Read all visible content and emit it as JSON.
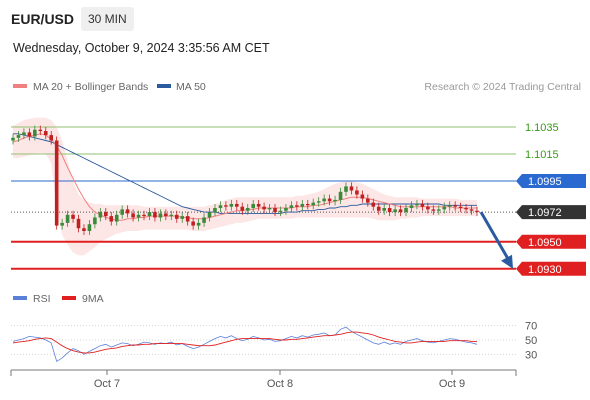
{
  "header": {
    "pair": "EUR/USD",
    "timeframe": "30 MIN",
    "datetime": "Wednesday, October 9, 2024 3:35:56 AM CET"
  },
  "legend": {
    "bollinger_label": "MA 20 + Bollinger Bands",
    "ma50_label": "MA 50",
    "credit": "Research © 2024 Trading Central",
    "rsi_label": "RSI",
    "rsi_ma_label": "9MA"
  },
  "colors": {
    "up": "#3a8a3a",
    "down": "#c02020",
    "ma20": "#f08080",
    "band_fill": "#fde3e3",
    "ma50": "#2a5aa0",
    "resistance": "#90c070",
    "pivot": "#2a6ad0",
    "support": "#e02020",
    "current": "#333333",
    "rsi": "#5a80d8",
    "rsi_ma": "#e02020",
    "arrow": "#2a5aa0"
  },
  "chart_data": [
    {
      "type": "line",
      "panel": "price",
      "x_ticks": [
        "Oct 7",
        "Oct 8",
        "Oct 9"
      ],
      "ylim": [
        1.0918,
        1.1055
      ],
      "levels": [
        {
          "value": 1.1035,
          "label": "1.1035",
          "kind": "resistance"
        },
        {
          "value": 1.1015,
          "label": "1.1015",
          "kind": "resistance"
        },
        {
          "value": 1.0995,
          "label": "1.0995",
          "kind": "pivot"
        },
        {
          "value": 1.0972,
          "label": "1.0972",
          "kind": "current"
        },
        {
          "value": 1.095,
          "label": "1.0950",
          "kind": "support"
        },
        {
          "value": 1.093,
          "label": "1.0930",
          "kind": "support"
        }
      ],
      "close": [
        1.1027,
        1.1029,
        1.1031,
        1.1028,
        1.1033,
        1.1032,
        1.1029,
        1.1025,
        1.0962,
        1.0964,
        1.097,
        1.0967,
        1.096,
        1.0958,
        1.0963,
        1.0968,
        1.0972,
        1.0969,
        1.0965,
        1.097,
        1.0974,
        1.0971,
        1.0968,
        1.097,
        1.0969,
        1.0972,
        1.0968,
        1.0971,
        1.0969,
        1.097,
        1.0967,
        1.0969,
        1.0965,
        1.0962,
        1.0964,
        1.0968,
        1.0972,
        1.0975,
        1.0977,
        1.0976,
        1.0978,
        1.0976,
        1.0973,
        1.0975,
        1.0978,
        1.0976,
        1.0974,
        1.0975,
        1.0972,
        1.0973,
        1.0975,
        1.0977,
        1.0976,
        1.0978,
        1.0977,
        1.0979,
        1.098,
        1.0982,
        1.098,
        1.0981,
        1.0987,
        1.0991,
        1.0988,
        1.0985,
        1.0982,
        1.0979,
        1.0976,
        1.0973,
        1.0975,
        1.0972,
        1.0974,
        1.0972,
        1.0975,
        1.0977,
        1.0978,
        1.0976,
        1.0974,
        1.0973,
        1.0974,
        1.0976,
        1.0977,
        1.0976,
        1.0975,
        1.0974,
        1.0973,
        1.0972
      ],
      "ma20": [
        1.1024,
        1.1025,
        1.1027,
        1.1028,
        1.1029,
        1.103,
        1.1029,
        1.1026,
        1.1021,
        1.1014,
        1.1005,
        1.0997,
        1.0989,
        1.0982,
        1.0976,
        1.0972,
        1.097,
        1.0968,
        1.0967,
        1.0966,
        1.0966,
        1.0967,
        1.0967,
        1.0968,
        1.0968,
        1.0969,
        1.0969,
        1.0969,
        1.0969,
        1.0969,
        1.0969,
        1.0968,
        1.0968,
        1.0967,
        1.0967,
        1.0967,
        1.0968,
        1.0969,
        1.097,
        1.0971,
        1.0972,
        1.0973,
        1.0973,
        1.0974,
        1.0974,
        1.0975,
        1.0975,
        1.0975,
        1.0975,
        1.0975,
        1.0975,
        1.0975,
        1.0976,
        1.0976,
        1.0976,
        1.0977,
        1.0977,
        1.0978,
        1.0979,
        1.098,
        1.0981,
        1.0982,
        1.0983,
        1.0983,
        1.0983,
        1.0982,
        1.0981,
        1.098,
        1.0979,
        1.0978,
        1.0977,
        1.0976,
        1.0976,
        1.0976,
        1.0976,
        1.0976,
        1.0976,
        1.0976,
        1.0976,
        1.0976,
        1.0976,
        1.0975,
        1.0975,
        1.0975,
        1.0975,
        1.0975
      ],
      "bb_upper": [
        1.1036,
        1.1038,
        1.104,
        1.1041,
        1.1042,
        1.1042,
        1.1042,
        1.104,
        1.1035,
        1.1025,
        1.101,
        1.0995,
        1.0985,
        1.0981,
        1.0979,
        1.0978,
        1.0978,
        1.0977,
        1.0977,
        1.0977,
        1.0977,
        1.0977,
        1.0977,
        1.0977,
        1.0976,
        1.0976,
        1.0976,
        1.0976,
        1.0976,
        1.0976,
        1.0976,
        1.0976,
        1.0976,
        1.0976,
        1.0976,
        1.0976,
        1.0977,
        1.0978,
        1.0979,
        1.0981,
        1.0982,
        1.0983,
        1.0983,
        1.0983,
        1.0983,
        1.0983,
        1.0983,
        1.0983,
        1.0983,
        1.0983,
        1.0983,
        1.0983,
        1.0984,
        1.0984,
        1.0985,
        1.0986,
        1.0987,
        1.0989,
        1.0991,
        1.0993,
        1.0994,
        1.0995,
        1.0995,
        1.0994,
        1.0993,
        1.0991,
        1.0989,
        1.0987,
        1.0985,
        1.0984,
        1.0983,
        1.0983,
        1.0983,
        1.0983,
        1.0983,
        1.0982,
        1.0982,
        1.0982,
        1.0982,
        1.0982,
        1.0982,
        1.0982,
        1.0981,
        1.0981,
        1.0981,
        1.0981
      ],
      "bb_lower": [
        1.1012,
        1.1012,
        1.1013,
        1.1014,
        1.1015,
        1.1016,
        1.1015,
        1.1008,
        1.0975,
        1.0955,
        1.0948,
        1.0942,
        1.094,
        1.094,
        1.0943,
        1.0946,
        1.095,
        1.0952,
        1.0954,
        1.0956,
        1.0957,
        1.0958,
        1.0958,
        1.0958,
        1.0959,
        1.0959,
        1.0959,
        1.0959,
        1.0959,
        1.0959,
        1.0959,
        1.0959,
        1.0959,
        1.0958,
        1.0958,
        1.0958,
        1.0959,
        1.096,
        1.0961,
        1.0962,
        1.0963,
        1.0964,
        1.0964,
        1.0965,
        1.0966,
        1.0967,
        1.0967,
        1.0967,
        1.0967,
        1.0967,
        1.0967,
        1.0967,
        1.0968,
        1.0968,
        1.0968,
        1.0968,
        1.0968,
        1.0968,
        1.0968,
        1.0968,
        1.0968,
        1.0968,
        1.0968,
        1.0968,
        1.0968,
        1.0968,
        1.0967,
        1.0966,
        1.0966,
        1.0966,
        1.0966,
        1.0967,
        1.0967,
        1.0968,
        1.0968,
        1.0969,
        1.0969,
        1.0969,
        1.0969,
        1.0969,
        1.0969,
        1.0969,
        1.0969,
        1.0969,
        1.0969,
        1.0969
      ],
      "ma50": [
        1.103,
        1.103,
        1.1029,
        1.1028,
        1.1027,
        1.1026,
        1.1025,
        1.1024,
        1.1022,
        1.102,
        1.1018,
        1.1016,
        1.1014,
        1.1012,
        1.101,
        1.1008,
        1.1006,
        1.1004,
        1.1002,
        1.1,
        1.0998,
        1.0996,
        1.0994,
        1.0992,
        1.099,
        1.0988,
        1.0986,
        1.0984,
        1.0982,
        1.098,
        1.0978,
        1.0976,
        1.0975,
        1.0974,
        1.0973,
        1.0972,
        1.0972,
        1.0972,
        1.0971,
        1.0971,
        1.0971,
        1.0971,
        1.0971,
        1.0971,
        1.0971,
        1.0971,
        1.0971,
        1.0971,
        1.0971,
        1.0971,
        1.0972,
        1.0972,
        1.0972,
        1.0973,
        1.0973,
        1.0973,
        1.0974,
        1.0974,
        1.0975,
        1.0975,
        1.0976,
        1.0976,
        1.0977,
        1.0977,
        1.0978,
        1.0978,
        1.0978,
        1.0978,
        1.0978,
        1.0978,
        1.0978,
        1.0978,
        1.0978,
        1.0978,
        1.0978,
        1.0978,
        1.0978,
        1.0978,
        1.0978,
        1.0977,
        1.0977,
        1.0977,
        1.0977,
        1.0977,
        1.0977,
        1.0977
      ],
      "projection": {
        "from": 1.0972,
        "to": 1.093
      }
    },
    {
      "type": "line",
      "panel": "rsi",
      "y_ticks": [
        70,
        50,
        30
      ],
      "ylim": [
        15,
        85
      ],
      "rsi": [
        48,
        50,
        52,
        55,
        54,
        53,
        50,
        46,
        20,
        25,
        32,
        38,
        35,
        30,
        34,
        38,
        42,
        44,
        40,
        43,
        46,
        45,
        42,
        44,
        47,
        46,
        44,
        46,
        45,
        47,
        43,
        45,
        41,
        38,
        40,
        44,
        48,
        52,
        55,
        53,
        56,
        52,
        49,
        51,
        55,
        53,
        50,
        51,
        48,
        49,
        52,
        55,
        53,
        56,
        54,
        57,
        58,
        60,
        56,
        57,
        65,
        68,
        62,
        58,
        54,
        50,
        46,
        44,
        47,
        44,
        46,
        44,
        48,
        50,
        52,
        49,
        47,
        46,
        48,
        50,
        52,
        51,
        49,
        47,
        46,
        44
      ],
      "rsi_ma": [
        46,
        47,
        48,
        49,
        51,
        52,
        53,
        52,
        47,
        42,
        38,
        35,
        33,
        32,
        32,
        33,
        35,
        37,
        38,
        39,
        41,
        42,
        43,
        43,
        44,
        44,
        45,
        45,
        45,
        45,
        45,
        45,
        44,
        43,
        42,
        42,
        42,
        43,
        45,
        47,
        49,
        51,
        52,
        52,
        52,
        52,
        52,
        52,
        51,
        50,
        50,
        51,
        51,
        52,
        53,
        54,
        55,
        56,
        56,
        57,
        58,
        60,
        61,
        61,
        60,
        59,
        57,
        54,
        52,
        50,
        48,
        47,
        46,
        46,
        47,
        48,
        48,
        48,
        48,
        48,
        49,
        49,
        49,
        49,
        48,
        48
      ]
    }
  ]
}
